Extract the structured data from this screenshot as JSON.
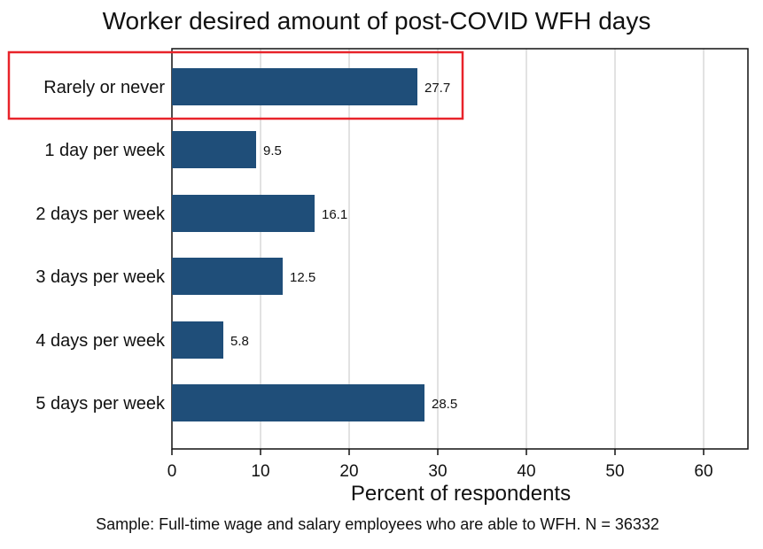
{
  "chart_data": {
    "type": "bar",
    "orientation": "horizontal",
    "title": "Worker desired amount of post-COVID WFH days",
    "categories": [
      "Rarely or never",
      "1 day per week",
      "2 days per week",
      "3 days per week",
      "4 days per week",
      "5 days per week"
    ],
    "values": [
      27.7,
      9.5,
      16.1,
      12.5,
      5.8,
      28.5
    ],
    "data_labels": [
      "27.7",
      "9.5",
      "16.1",
      "12.5",
      "5.8",
      "28.5"
    ],
    "xlabel": "Percent of respondents",
    "xlim": [
      0,
      65
    ],
    "xticks": [
      0,
      10,
      20,
      30,
      40,
      50,
      60
    ],
    "xtick_labels": [
      "0",
      "10",
      "20",
      "30",
      "40",
      "50",
      "60"
    ],
    "grid": true,
    "note": "Sample: Full-time wage and salary employees who are able to WFH. N = 36332",
    "highlighted_category": "Rarely or never",
    "colors": {
      "bar": "#1f4e79",
      "grid": "#d9d9d9",
      "highlight_box": "#e8232a"
    }
  }
}
